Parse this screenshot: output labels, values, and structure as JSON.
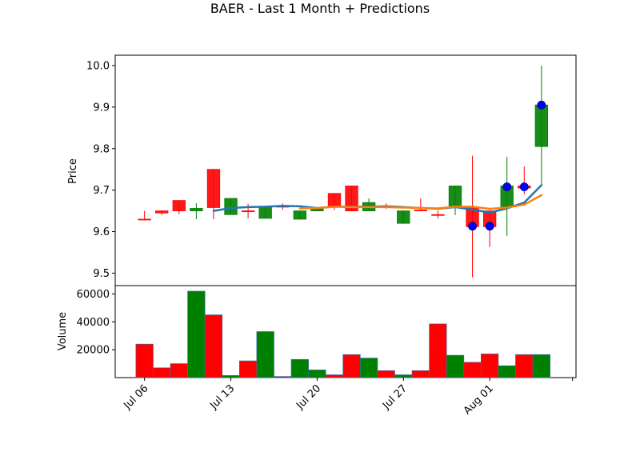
{
  "chart_data": {
    "title": "BAER - Last 1 Month + Predictions",
    "price_panel": {
      "type": "candlestick",
      "ylabel": "Price",
      "ylim": [
        9.47,
        10.025
      ],
      "yticks": [
        9.5,
        9.6,
        9.7,
        9.8,
        9.9,
        10.0
      ],
      "ytick_labels": [
        "9.5",
        "9.6",
        "9.7",
        "9.8",
        "9.9",
        "10.0"
      ],
      "candles": [
        {
          "x": 0,
          "open": 9.63,
          "high": 9.65,
          "low": 9.63,
          "close": 9.63,
          "color": "red"
        },
        {
          "x": 1,
          "open": 9.65,
          "high": 9.65,
          "low": 9.64,
          "close": 9.645,
          "color": "red"
        },
        {
          "x": 2,
          "open": 9.675,
          "high": 9.675,
          "low": 9.642,
          "close": 9.65,
          "color": "red"
        },
        {
          "x": 3,
          "open": 9.65,
          "high": 9.668,
          "low": 9.63,
          "close": 9.656,
          "color": "green"
        },
        {
          "x": 4,
          "open": 9.75,
          "high": 9.75,
          "low": 9.63,
          "close": 9.658,
          "color": "red"
        },
        {
          "x": 5,
          "open": 9.641,
          "high": 9.68,
          "low": 9.641,
          "close": 9.68,
          "color": "green"
        },
        {
          "x": 6,
          "open": 9.65,
          "high": 9.667,
          "low": 9.632,
          "close": 9.65,
          "color": "red"
        },
        {
          "x": 7,
          "open": 9.632,
          "high": 9.66,
          "low": 9.632,
          "close": 9.66,
          "color": "green"
        },
        {
          "x": 8,
          "open": 9.661,
          "high": 9.668,
          "low": 9.652,
          "close": 9.66,
          "color": "red"
        },
        {
          "x": 9,
          "open": 9.63,
          "high": 9.65,
          "low": 9.63,
          "close": 9.65,
          "color": "green"
        },
        {
          "x": 10,
          "open": 9.65,
          "high": 9.655,
          "low": 9.65,
          "close": 9.655,
          "color": "green"
        },
        {
          "x": 11,
          "open": 9.692,
          "high": 9.692,
          "low": 9.652,
          "close": 9.662,
          "color": "red"
        },
        {
          "x": 12,
          "open": 9.71,
          "high": 9.71,
          "low": 9.65,
          "close": 9.65,
          "color": "red"
        },
        {
          "x": 13,
          "open": 9.65,
          "high": 9.68,
          "low": 9.65,
          "close": 9.67,
          "color": "green"
        },
        {
          "x": 14,
          "open": 9.662,
          "high": 9.668,
          "low": 9.655,
          "close": 9.66,
          "color": "red"
        },
        {
          "x": 15,
          "open": 9.62,
          "high": 9.65,
          "low": 9.62,
          "close": 9.65,
          "color": "green"
        },
        {
          "x": 16,
          "open": 9.652,
          "high": 9.68,
          "low": 9.65,
          "close": 9.652,
          "color": "red"
        },
        {
          "x": 17,
          "open": 9.641,
          "high": 9.65,
          "low": 9.632,
          "close": 9.64,
          "color": "red"
        },
        {
          "x": 18,
          "open": 9.66,
          "high": 9.71,
          "low": 9.64,
          "close": 9.71,
          "color": "green"
        },
        {
          "x": 19,
          "open": 9.66,
          "high": 9.783,
          "low": 9.49,
          "close": 9.612,
          "color": "red"
        },
        {
          "x": 20,
          "open": 9.65,
          "high": 9.65,
          "low": 9.563,
          "close": 9.612,
          "color": "red"
        },
        {
          "x": 21,
          "open": 9.66,
          "high": 9.78,
          "low": 9.59,
          "close": 9.71,
          "color": "green"
        },
        {
          "x": 22,
          "open": 9.71,
          "high": 9.757,
          "low": 9.69,
          "close": 9.705,
          "color": "red"
        },
        {
          "x": 23,
          "open": 9.805,
          "high": 10.0,
          "low": 9.71,
          "close": 9.905,
          "color": "green"
        }
      ],
      "lines": [
        {
          "color": "#1f77b4",
          "points": [
            [
              4,
              9.65
            ],
            [
              5,
              9.657
            ],
            [
              6,
              9.659
            ],
            [
              7,
              9.66
            ],
            [
              8,
              9.662
            ],
            [
              9,
              9.661
            ],
            [
              10,
              9.657
            ],
            [
              11,
              9.66
            ],
            [
              12,
              9.66
            ],
            [
              13,
              9.66
            ],
            [
              14,
              9.661
            ],
            [
              15,
              9.659
            ],
            [
              16,
              9.657
            ],
            [
              17,
              9.655
            ],
            [
              18,
              9.659
            ],
            [
              19,
              9.653
            ],
            [
              20,
              9.646
            ],
            [
              21,
              9.656
            ],
            [
              22,
              9.67
            ],
            [
              23,
              9.712
            ]
          ]
        },
        {
          "color": "#ff7f0e",
          "points": [
            [
              9,
              9.656
            ],
            [
              10,
              9.657
            ],
            [
              11,
              9.66
            ],
            [
              12,
              9.659
            ],
            [
              13,
              9.659
            ],
            [
              14,
              9.659
            ],
            [
              15,
              9.658
            ],
            [
              16,
              9.657
            ],
            [
              17,
              9.656
            ],
            [
              18,
              9.66
            ],
            [
              19,
              9.66
            ],
            [
              20,
              9.655
            ],
            [
              21,
              9.658
            ],
            [
              22,
              9.665
            ],
            [
              23,
              9.688
            ]
          ]
        }
      ],
      "prediction_points": [
        [
          19,
          9.613
        ],
        [
          20,
          9.613
        ],
        [
          21,
          9.708
        ],
        [
          22,
          9.708
        ],
        [
          23,
          9.905
        ]
      ],
      "prediction_color": "#0000ff"
    },
    "volume_panel": {
      "type": "bar",
      "ylabel": "Volume",
      "ylim": [
        0,
        66000
      ],
      "yticks": [
        20000,
        40000,
        60000
      ],
      "ytick_labels": [
        "20000",
        "40000",
        "60000"
      ],
      "bars": [
        {
          "x": 0,
          "value": 24000,
          "color": "red"
        },
        {
          "x": 1,
          "value": 7000,
          "color": "red"
        },
        {
          "x": 2,
          "value": 10000,
          "color": "red"
        },
        {
          "x": 3,
          "value": 62000,
          "color": "green"
        },
        {
          "x": 4,
          "value": 45000,
          "color": "red"
        },
        {
          "x": 5,
          "value": 1500,
          "color": "green"
        },
        {
          "x": 6,
          "value": 12000,
          "color": "red"
        },
        {
          "x": 7,
          "value": 33000,
          "color": "green"
        },
        {
          "x": 8,
          "value": 800,
          "color": "red"
        },
        {
          "x": 9,
          "value": 13000,
          "color": "green"
        },
        {
          "x": 10,
          "value": 5500,
          "color": "green"
        },
        {
          "x": 11,
          "value": 2000,
          "color": "red"
        },
        {
          "x": 12,
          "value": 16500,
          "color": "red"
        },
        {
          "x": 13,
          "value": 14000,
          "color": "green"
        },
        {
          "x": 14,
          "value": 5000,
          "color": "red"
        },
        {
          "x": 15,
          "value": 2000,
          "color": "green"
        },
        {
          "x": 16,
          "value": 5000,
          "color": "red"
        },
        {
          "x": 17,
          "value": 38500,
          "color": "red"
        },
        {
          "x": 18,
          "value": 16000,
          "color": "green"
        },
        {
          "x": 19,
          "value": 11000,
          "color": "red"
        },
        {
          "x": 20,
          "value": 17000,
          "color": "red"
        },
        {
          "x": 21,
          "value": 8500,
          "color": "green"
        },
        {
          "x": 22,
          "value": 16500,
          "color": "red"
        },
        {
          "x": 23,
          "value": 16500,
          "color": "green"
        }
      ]
    },
    "xaxis": {
      "xlim": [
        -1.7,
        25.0
      ],
      "ticks": [
        0,
        5,
        10,
        15,
        20,
        24.8
      ],
      "tick_labels": [
        "Jul 06",
        "Jul 13",
        "Jul 20",
        "Jul 27",
        "Aug 01",
        ""
      ]
    },
    "colors": {
      "up": "#008000",
      "down": "#ff0000"
    }
  }
}
